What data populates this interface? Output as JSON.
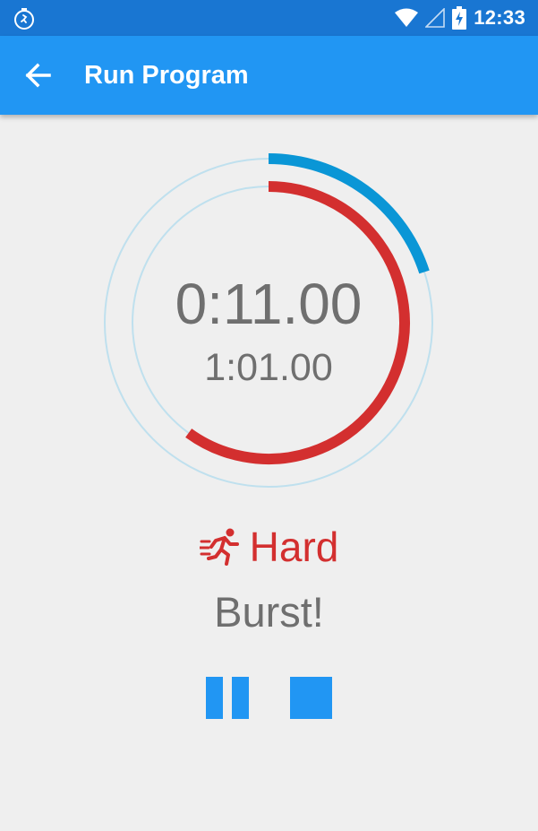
{
  "status_bar": {
    "time": "12:33",
    "app_icon": "stopwatch-icon",
    "icons": [
      "wifi-icon",
      "cell-signal-icon",
      "battery-charging-icon"
    ]
  },
  "app_bar": {
    "title": "Run Program",
    "back_icon": "arrow-back-icon"
  },
  "timer": {
    "elapsed": "0:11.00",
    "total": "1:01.00",
    "outer_progress": 0.2,
    "inner_progress": 0.6
  },
  "phase": {
    "icon": "running-icon",
    "label": "Hard",
    "message": "Burst!"
  },
  "controls": {
    "pause_icon": "pause-icon",
    "stop_icon": "stop-icon"
  },
  "colors": {
    "status_bar": "#1976d2",
    "app_bar": "#2196f3",
    "outer_arc": "#0a96d6",
    "inner_arc": "#d32f2f",
    "track": "#bfe0ee",
    "timer_text": "#6f6f6f",
    "controls": "#2196f3"
  }
}
